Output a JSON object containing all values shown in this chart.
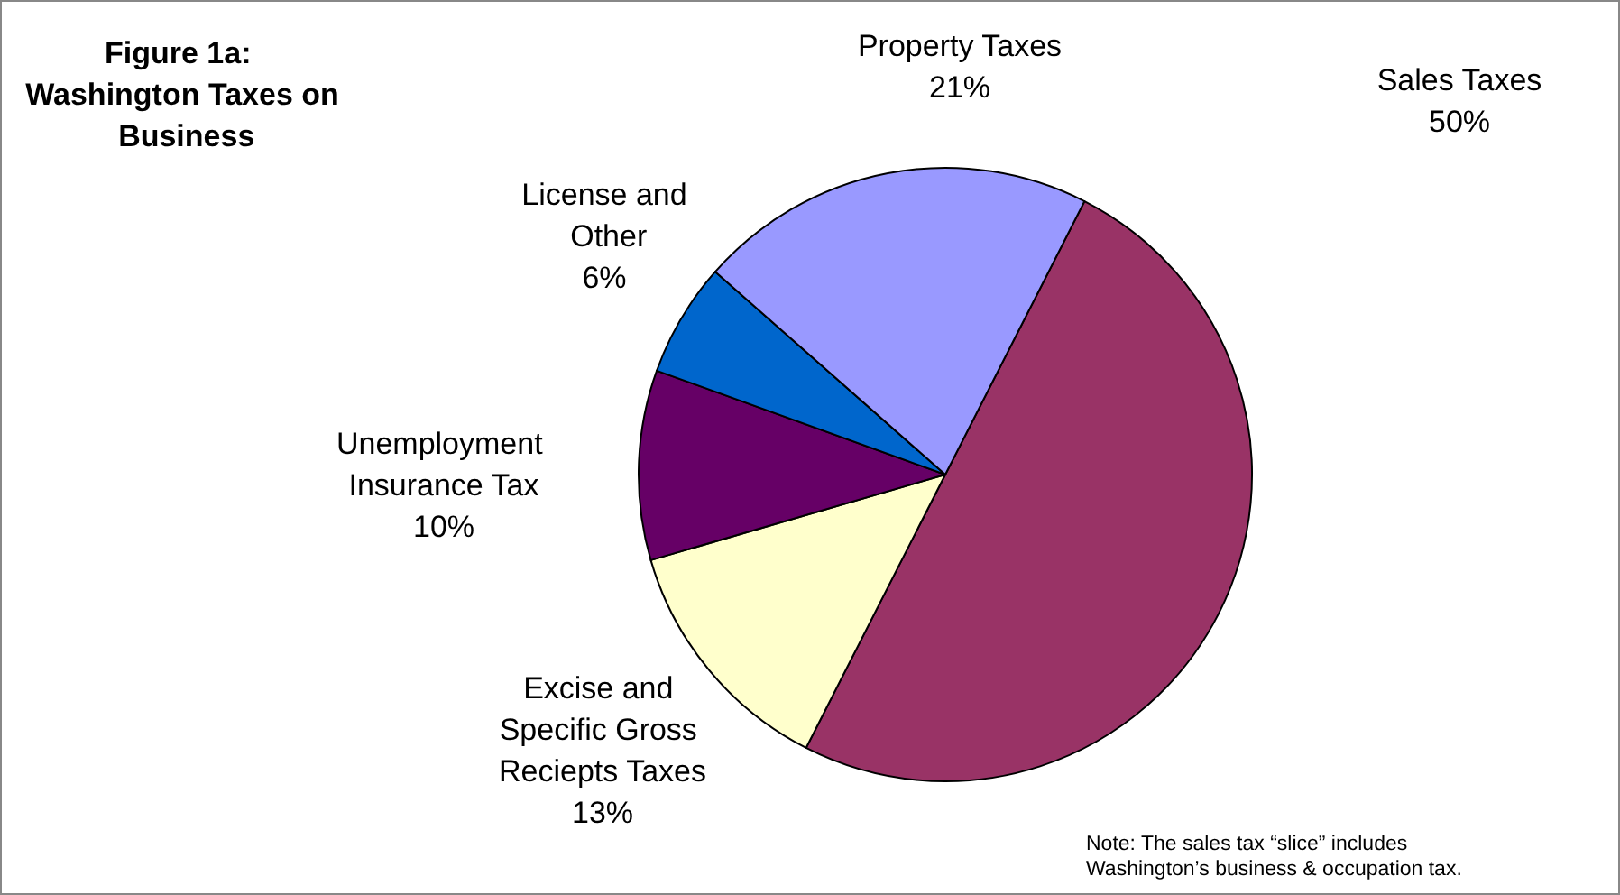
{
  "chart_data": {
    "type": "pie",
    "title": "Figure 1a: Washington Taxes on Business",
    "categories": [
      "Sales Taxes",
      "Excise and Specific Gross Reciepts Taxes",
      "Unemployment Insurance Tax",
      "License and Other",
      "Property Taxes"
    ],
    "values": [
      50,
      13,
      10,
      6,
      21
    ],
    "value_labels": [
      "50%",
      "13%",
      "10%",
      "6%",
      "21%"
    ],
    "colors": [
      "#993366",
      "#ffffcc",
      "#660066",
      "#0066cc",
      "#9999ff"
    ],
    "annotations": [
      "Note: The sales tax “slice” includes Washington’s business & occupation tax."
    ],
    "legend": false
  }
}
